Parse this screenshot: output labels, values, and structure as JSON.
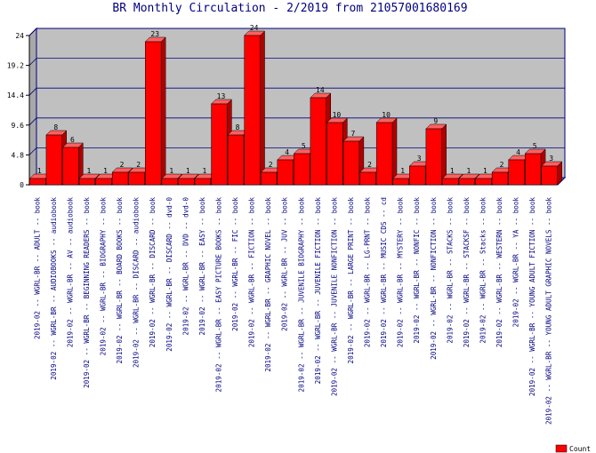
{
  "chart_data": {
    "type": "bar",
    "title": "BR Monthly Circulation - 2/2019 from 21057001680169",
    "ylim": [
      0,
      24
    ],
    "yticks": [
      "0",
      "4.8",
      "9.6",
      "14.4",
      "19.2",
      "24"
    ],
    "grid": true,
    "legend_position": "bottom-right",
    "categories": [
      "2019-02 -- WGRL-BR -- ADULT -- book",
      "2019-02 -- WGRL-BR -- AUDIOBOOKS -- audiobook",
      "2019-02 -- WGRL-BR -- AV -- audiobook",
      "2019-02 -- WGRL-BR -- BEGINNING READERS -- book",
      "2019-02 -- WGRL-BR -- BIOGRAPHY -- book",
      "2019-02 -- WGRL-BR -- BOARD BOOKS -- book",
      "2019-02 -- WGRL-BR -- DISCARD -- audiobook",
      "2019-02 -- WGRL-BR -- DISCARD -- book",
      "2019-02 -- WGRL-BR -- DISCARD -- dvd-0",
      "2019-02 -- WGRL-BR -- DVD -- dvd-0",
      "2019-02 -- WGRL-BR -- EASY -- book",
      "2019-02 -- WGRL-BR -- EASY PICTURE BOOKS -- book",
      "2019-02 -- WGRL-BR -- FIC -- book",
      "2019-02 -- WGRL-BR -- FICTION -- book",
      "2019-02 -- WGRL-BR -- GRAPHIC NOVEL -- book",
      "2019-02 -- WGRL-BR -- JUV -- book",
      "2019-02 -- WGRL-BR -- JUVENILE BIOGRAPHY -- book",
      "2019-02 -- WGRL-BR -- JUVENILE FICTION -- book",
      "2019-02 -- WGRL-BR -- JUVENILE NONFICTION -- book",
      "2019-02 -- WGRL-BR -- LARGE PRINT -- book",
      "2019-02 -- WGRL-BR -- LG-PRNT -- book",
      "2019-02 -- WGRL-BR -- MUSIC CDS -- cd",
      "2019-02 -- WGRL-BR -- MYSTERY -- book",
      "2019-02 -- WGRL-BR -- NONFIC -- book",
      "2019-02 -- WGRL-BR -- NONFICTION -- book",
      "2019-02 -- WGRL-BR -- STACKS -- book",
      "2019-02 -- WGRL-BR -- STACKSF -- book",
      "2019-02 -- WGRL-BR -- Stacks -- book",
      "2019-02 -- WGRL-BR -- WESTERN -- book",
      "2019-02 -- WGRL-BR -- YA -- book",
      "2019-02 -- WGRL-BR -- YOUNG ADULT FICTION -- book",
      "2019-02 -- WGRL-BR -- YOUNG ADULT GRAPHIC NOVELS -- book"
    ],
    "series": [
      {
        "name": "Count",
        "color": "#ff0000",
        "values": [
          1,
          8,
          6,
          1,
          1,
          2,
          2,
          23,
          1,
          1,
          1,
          13,
          8,
          24,
          2,
          4,
          5,
          14,
          10,
          7,
          2,
          10,
          1,
          3,
          9,
          1,
          1,
          1,
          2,
          4,
          5,
          3
        ]
      }
    ]
  },
  "colors": {
    "bar_front": "#ff0000",
    "bar_side": "#b00000",
    "bar_top": "#ff6060",
    "plot_back": "#c0c0c0",
    "plot_floor": "#909090",
    "frame": "#000080",
    "title": "#000080"
  }
}
